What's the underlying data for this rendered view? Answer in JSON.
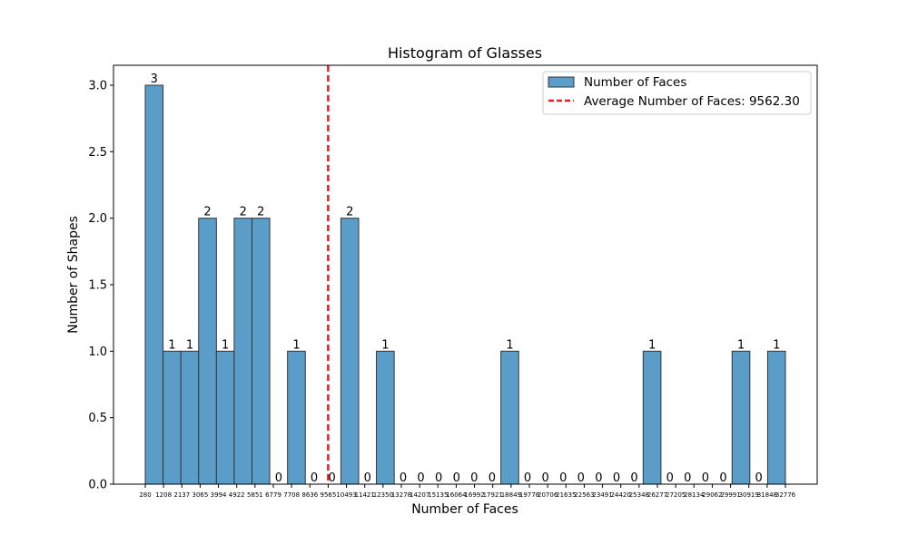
{
  "chart_data": {
    "type": "bar",
    "title": "Histogram of Glasses",
    "xlabel": "Number of Faces",
    "ylabel": "Number of Shapes",
    "ylim": [
      0,
      3.15
    ],
    "yticks": [
      "0.0",
      "0.5",
      "1.0",
      "1.5",
      "2.0",
      "2.5",
      "3.0"
    ],
    "bin_edges": [
      "280",
      "1208",
      "2137",
      "3065",
      "3994",
      "4922",
      "5851",
      "6779",
      "7708",
      "8636",
      "9565",
      "10493",
      "11421",
      "12350",
      "13278",
      "14207",
      "15135",
      "16064",
      "16992",
      "17921",
      "18849",
      "19778",
      "20706",
      "21635",
      "22563",
      "23491",
      "24420",
      "25348",
      "26277",
      "27205",
      "28134",
      "29062",
      "29991",
      "30919",
      "31848",
      "32776"
    ],
    "series": [
      {
        "name": "Number of Faces",
        "color": "#5b9dc9",
        "values": [
          3,
          1,
          1,
          2,
          1,
          2,
          2,
          0,
          1,
          0,
          0,
          2,
          0,
          1,
          0,
          0,
          0,
          0,
          0,
          0,
          1,
          0,
          0,
          0,
          0,
          0,
          0,
          0,
          1,
          0,
          0,
          0,
          0,
          1,
          0,
          1
        ]
      }
    ],
    "reference_line": {
      "name": "Average Number of Faces: 9562.30",
      "value": 9562.3,
      "color": "#e81c1c",
      "style": "dashed"
    },
    "legend_position": "top-right",
    "grid": false
  }
}
